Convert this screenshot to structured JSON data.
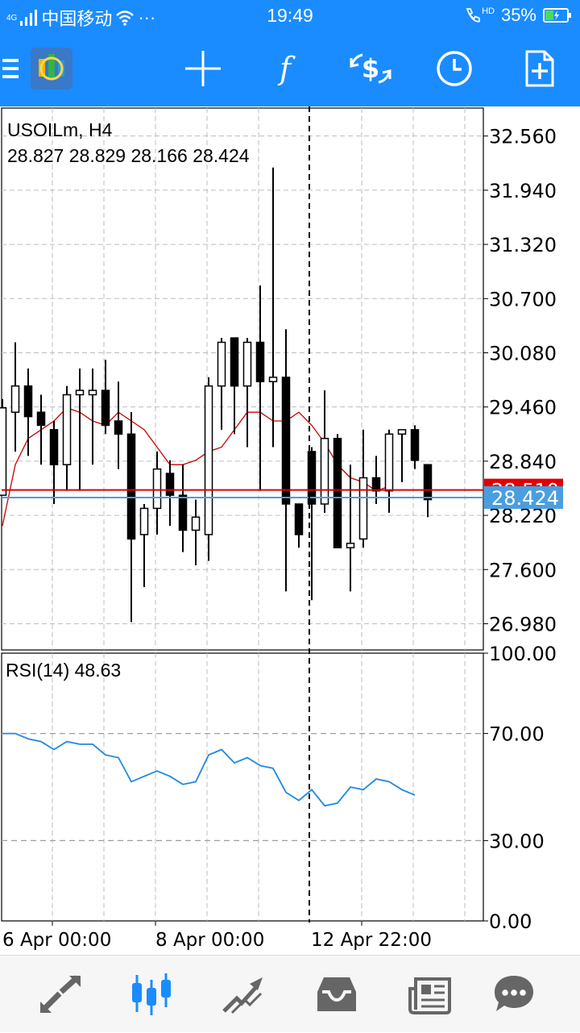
{
  "status_bar": {
    "network": "4G",
    "carrier": "中国移动",
    "more": "···",
    "time": "19:49",
    "hd": "HD",
    "battery": "35%"
  },
  "toolbar": {
    "items": [
      "menu-icon",
      "app-logo",
      "crosshair-icon",
      "indicators-icon",
      "dollar-swap-icon",
      "clock-icon",
      "new-order-icon"
    ]
  },
  "chart": {
    "symbol_label": "USOILm, H4",
    "ohlc_label": "28.827 28.829 28.166 28.424",
    "price_axis": [
      "32.560",
      "31.940",
      "31.320",
      "30.700",
      "30.080",
      "29.460",
      "28.840",
      "28.220",
      "27.600",
      "26.980"
    ],
    "bid_label": "28.424",
    "ask_label": "28.510",
    "rsi_label": "RSI(14) 48.63",
    "rsi_axis": [
      "100.00",
      "70.00",
      "30.00",
      "0.00"
    ],
    "time_axis": [
      "6 Apr 00:00",
      "8 Apr 00:00",
      "12 Apr 22:00"
    ],
    "colors": {
      "ask_line": "#e00000",
      "bid_line": "#4a9ee0",
      "ma_line": "#cc0000",
      "rsi_line": "#1e88e5",
      "toolbar_bg": "#1a8cff"
    }
  },
  "chart_data": {
    "type": "candlestick",
    "symbol": "USOILm",
    "timeframe": "H4",
    "ylim": [
      26.68,
      32.88
    ],
    "candles": [
      {
        "o": 28.45,
        "h": 29.55,
        "l": 28.45,
        "c": 29.45
      },
      {
        "o": 29.4,
        "h": 30.2,
        "l": 28.95,
        "c": 29.7
      },
      {
        "o": 29.7,
        "h": 29.9,
        "l": 28.9,
        "c": 29.35
      },
      {
        "o": 29.4,
        "h": 29.6,
        "l": 28.8,
        "c": 29.25
      },
      {
        "o": 29.2,
        "h": 29.3,
        "l": 28.35,
        "c": 28.8
      },
      {
        "o": 28.8,
        "h": 29.7,
        "l": 28.5,
        "c": 29.6
      },
      {
        "o": 29.6,
        "h": 29.9,
        "l": 28.5,
        "c": 29.65
      },
      {
        "o": 29.6,
        "h": 29.9,
        "l": 28.8,
        "c": 29.65
      },
      {
        "o": 29.65,
        "h": 30.0,
        "l": 29.15,
        "c": 29.25
      },
      {
        "o": 29.3,
        "h": 29.75,
        "l": 28.75,
        "c": 29.15
      },
      {
        "o": 29.15,
        "h": 29.4,
        "l": 27.0,
        "c": 27.95
      },
      {
        "o": 28.0,
        "h": 28.35,
        "l": 27.4,
        "c": 28.3
      },
      {
        "o": 28.3,
        "h": 28.95,
        "l": 28.0,
        "c": 28.75
      },
      {
        "o": 28.7,
        "h": 28.85,
        "l": 28.1,
        "c": 28.45
      },
      {
        "o": 28.45,
        "h": 28.8,
        "l": 27.8,
        "c": 28.05
      },
      {
        "o": 28.05,
        "h": 28.4,
        "l": 27.65,
        "c": 28.2
      },
      {
        "o": 28.0,
        "h": 29.8,
        "l": 27.7,
        "c": 29.7
      },
      {
        "o": 29.7,
        "h": 30.25,
        "l": 29.2,
        "c": 30.2
      },
      {
        "o": 30.25,
        "h": 30.25,
        "l": 29.15,
        "c": 29.7
      },
      {
        "o": 29.7,
        "h": 30.25,
        "l": 29.0,
        "c": 30.2
      },
      {
        "o": 30.2,
        "h": 30.85,
        "l": 28.5,
        "c": 29.75
      },
      {
        "o": 29.75,
        "h": 32.2,
        "l": 29.0,
        "c": 29.8
      },
      {
        "o": 29.8,
        "h": 30.35,
        "l": 27.35,
        "c": 28.35
      },
      {
        "o": 28.35,
        "h": 28.35,
        "l": 27.85,
        "c": 28.0
      },
      {
        "o": 28.95,
        "h": 29.0,
        "l": 27.25,
        "c": 28.35
      },
      {
        "o": 28.35,
        "h": 29.65,
        "l": 28.25,
        "c": 29.1
      },
      {
        "o": 29.1,
        "h": 29.15,
        "l": 27.85,
        "c": 27.85
      },
      {
        "o": 27.85,
        "h": 28.8,
        "l": 27.35,
        "c": 27.9
      },
      {
        "o": 27.95,
        "h": 29.2,
        "l": 27.85,
        "c": 28.65
      },
      {
        "o": 28.65,
        "h": 28.9,
        "l": 28.35,
        "c": 28.5
      },
      {
        "o": 28.5,
        "h": 29.2,
        "l": 28.25,
        "c": 29.15
      },
      {
        "o": 29.15,
        "h": 29.2,
        "l": 28.6,
        "c": 29.2
      },
      {
        "o": 29.2,
        "h": 29.25,
        "l": 28.75,
        "c": 28.85
      },
      {
        "o": 28.8,
        "h": 28.8,
        "l": 28.2,
        "c": 28.4
      }
    ],
    "moving_average": [
      28.1,
      28.8,
      29.1,
      29.2,
      29.3,
      29.45,
      29.4,
      29.3,
      29.25,
      29.4,
      29.3,
      29.2,
      29.0,
      28.8,
      28.8,
      28.85,
      28.95,
      29.0,
      29.2,
      29.4,
      29.4,
      29.3,
      29.3,
      29.4,
      29.25,
      29.05,
      28.8,
      28.65,
      28.6,
      28.5,
      28.55
    ],
    "current_bid": 28.424,
    "current_ask": 28.51,
    "rsi": {
      "period": 14,
      "last": 48.63,
      "ylim": [
        0,
        100
      ],
      "levels": [
        70,
        30
      ],
      "values": [
        70,
        70,
        68,
        67,
        64,
        67,
        66,
        66,
        62,
        61,
        52,
        54,
        56,
        54,
        51,
        52,
        62,
        64,
        59,
        61,
        58,
        57,
        48,
        45,
        49,
        43,
        44,
        50,
        49,
        53,
        52,
        49,
        47
      ]
    },
    "x_tick_labels": [
      "6 Apr 00:00",
      "8 Apr 00:00",
      "12 Apr 22:00"
    ]
  },
  "bottom_nav": {
    "items": [
      "quotes-icon",
      "chart-icon",
      "trade-icon",
      "history-icon",
      "news-icon",
      "messages-icon"
    ],
    "active": "chart-icon"
  }
}
